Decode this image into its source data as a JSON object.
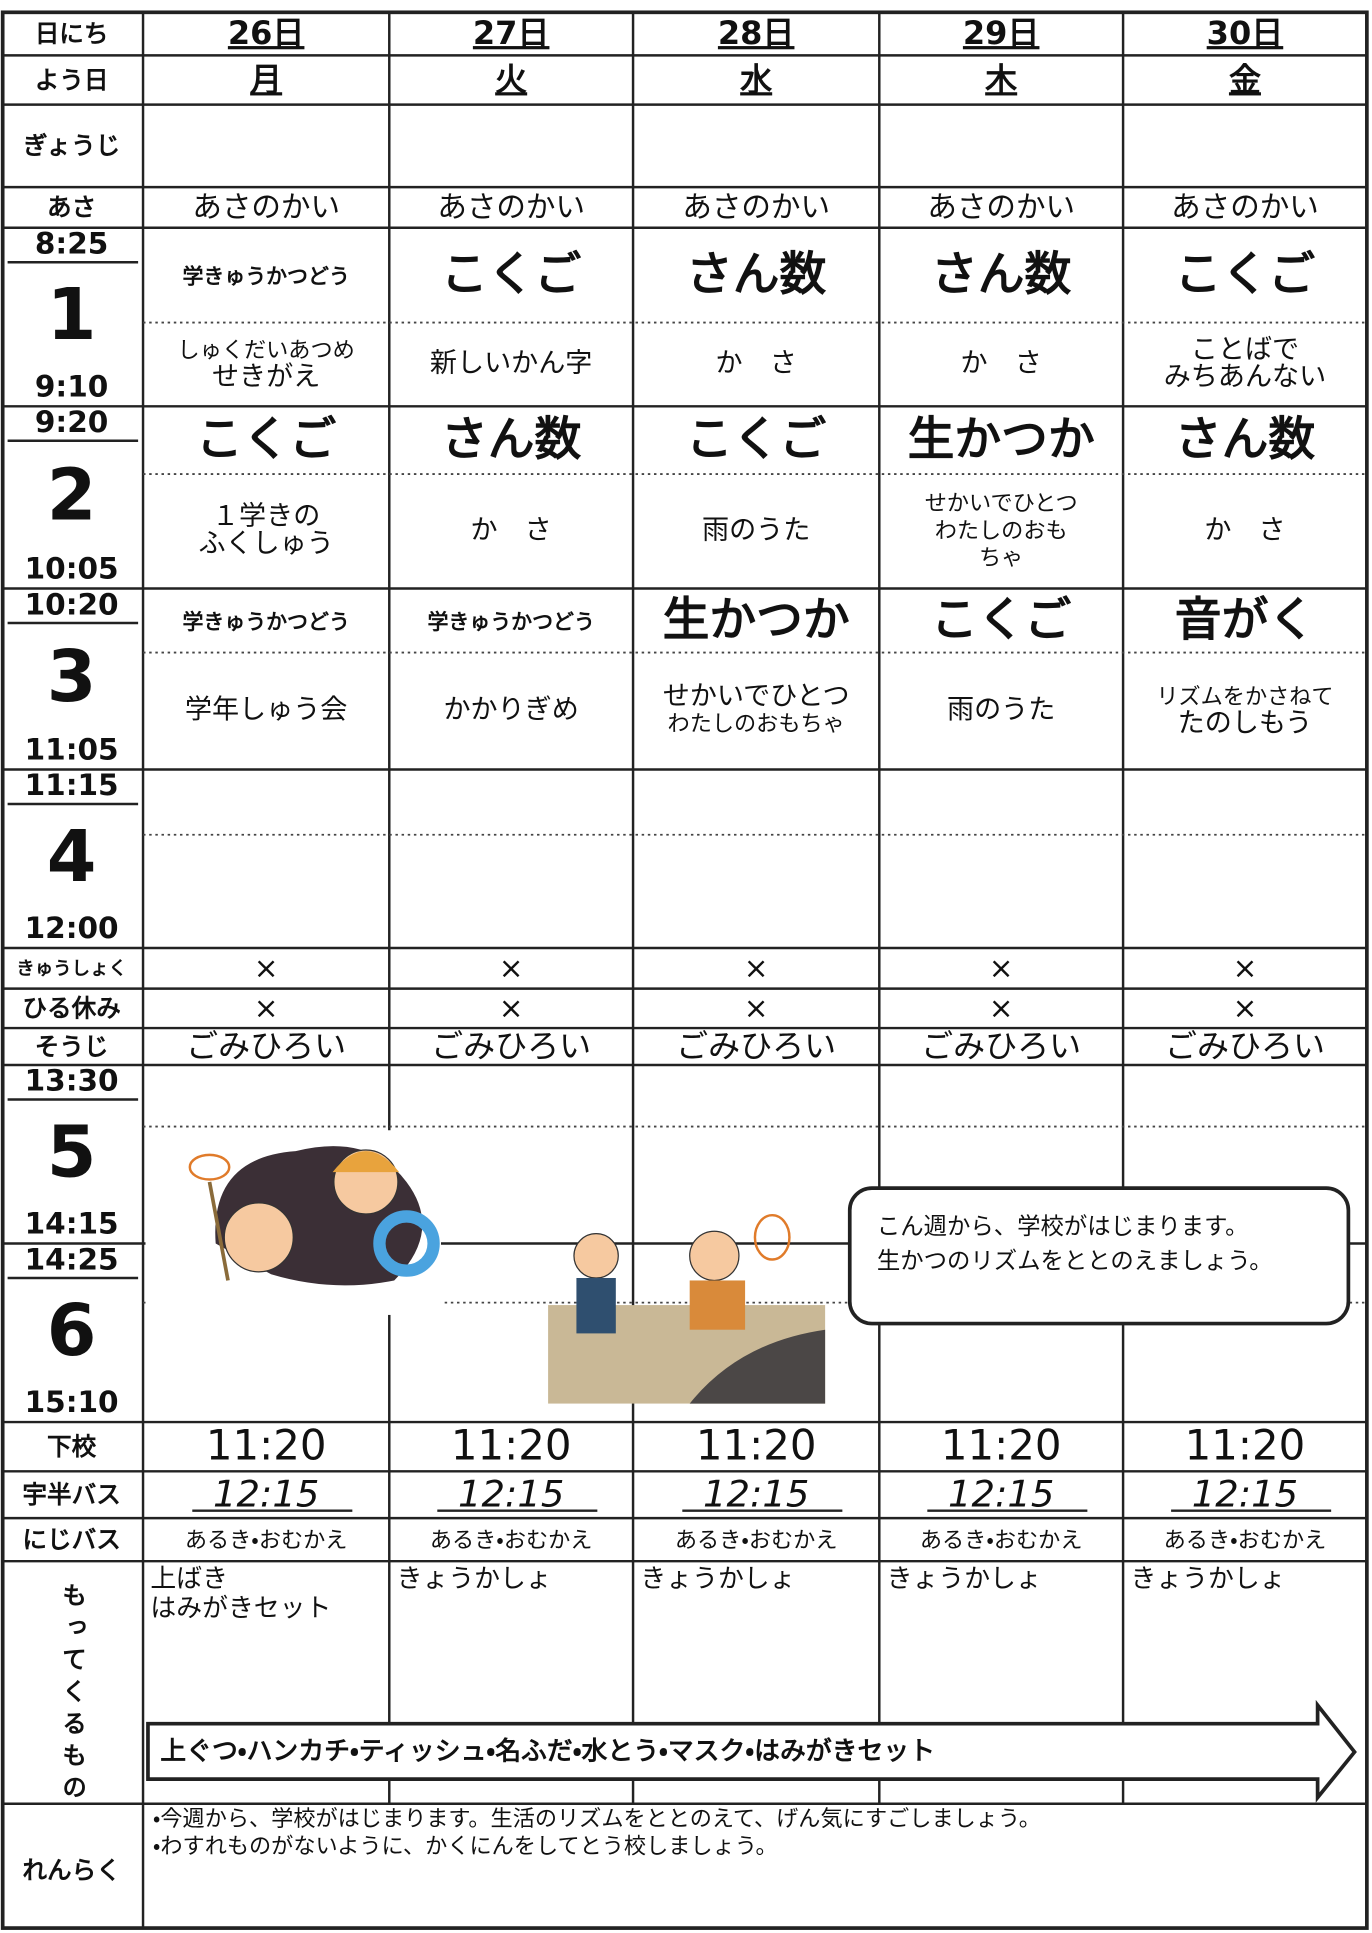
{
  "date": {
    "label": "日にち",
    "cells": [
      "26日",
      "27日",
      "28日",
      "29日",
      "30日"
    ]
  },
  "weekday": {
    "label": "よう日",
    "cells": [
      "月",
      "火",
      "水",
      "木",
      "金"
    ]
  },
  "event": {
    "label": "ぎょうじ"
  },
  "morning": {
    "label": "あさ",
    "cells": [
      "あさのかい",
      "あさのかい",
      "あさのかい",
      "あさのかい",
      "あさのかい"
    ]
  },
  "periods": [
    {
      "start": "8:25",
      "number": "1",
      "end": "9:10",
      "subjects": [
        "学きゅうかつどう",
        "こくご",
        "さん数",
        "さん数",
        "こくご"
      ],
      "contents": [
        [
          "しゅくだいあつめ",
          "せきがえ"
        ],
        [
          "新しいかん字"
        ],
        [
          "か　さ"
        ],
        [
          "か　さ"
        ],
        [
          "ことばで",
          "みちあんない"
        ]
      ]
    },
    {
      "start": "9:20",
      "number": "2",
      "end": "10:05",
      "subjects": [
        "こくご",
        "さん数",
        "こくご",
        "生かつか",
        "さん数"
      ],
      "contents": [
        [
          "１学きの",
          "ふくしゅう"
        ],
        [
          "か　さ"
        ],
        [
          "雨のうた"
        ],
        [
          "せかいでひとつ",
          "わたしのおも",
          "ちゃ"
        ],
        [
          "か　さ"
        ]
      ]
    },
    {
      "start": "10:20",
      "number": "3",
      "end": "11:05",
      "subjects": [
        "学きゅうかつどう",
        "学きゅうかつどう",
        "生かつか",
        "こくご",
        "音がく"
      ],
      "contents": [
        [
          "学年しゅう会"
        ],
        [
          "かかりぎめ"
        ],
        [
          "せかいでひとつ",
          "わたしのおもちゃ"
        ],
        [
          "雨のうた"
        ],
        [
          "リズムをかさねて",
          "たのしもう"
        ]
      ]
    },
    {
      "start": "11:15",
      "number": "4",
      "end": "12:00"
    },
    {
      "start": "13:30",
      "number": "5",
      "end": "14:15"
    },
    {
      "start": "14:25",
      "number": "6",
      "end": "15:10"
    }
  ],
  "lunch": {
    "label": "きゅうしょく",
    "cells": [
      "×",
      "×",
      "×",
      "×",
      "×"
    ]
  },
  "recess": {
    "label": "ひる休み",
    "cells": [
      "×",
      "×",
      "×",
      "×",
      "×"
    ]
  },
  "cleaning": {
    "label": "そうじ",
    "cells": [
      "ごみひろい",
      "ごみひろい",
      "ごみひろい",
      "ごみひろい",
      "ごみひろい"
    ]
  },
  "notice": [
    "こん週から、学校がはじまります。",
    "生かつのリズムをととのえましょう。"
  ],
  "dismissal": {
    "label": "下校",
    "cells": [
      "11:20",
      "11:20",
      "11:20",
      "11:20",
      "11:20"
    ]
  },
  "bus_uhan": {
    "label": "宇半バス",
    "cells": [
      "12:15",
      "12:15",
      "12:15",
      "12:15",
      "12:15"
    ]
  },
  "bus_niji": {
    "label": "にじバス",
    "cells": [
      "あるき・おむかえ",
      "あるき・おむかえ",
      "あるき・おむかえ",
      "あるき・おむかえ",
      "あるき・おむかえ"
    ]
  },
  "belongings": {
    "label": "もってくるもの",
    "cells": [
      [
        "上ばき",
        "はみがきセット"
      ],
      [
        "きょうかしょ"
      ],
      [
        "きょうかしょ"
      ],
      [
        "きょうかしょ"
      ],
      [
        "きょうかしょ"
      ]
    ],
    "everyday": "上ぐつ・ハンカチ・ティッシュ・名ふだ・水とう・マスク・はみがきセット"
  },
  "contact": {
    "label": "れんらく",
    "lines": [
      "・今週から、学校がはじまります。生活のリズムをととのえて、げん気にすごしましょう。",
      "・わすれものがないように、かくにんをしてとう校しましょう。"
    ]
  }
}
